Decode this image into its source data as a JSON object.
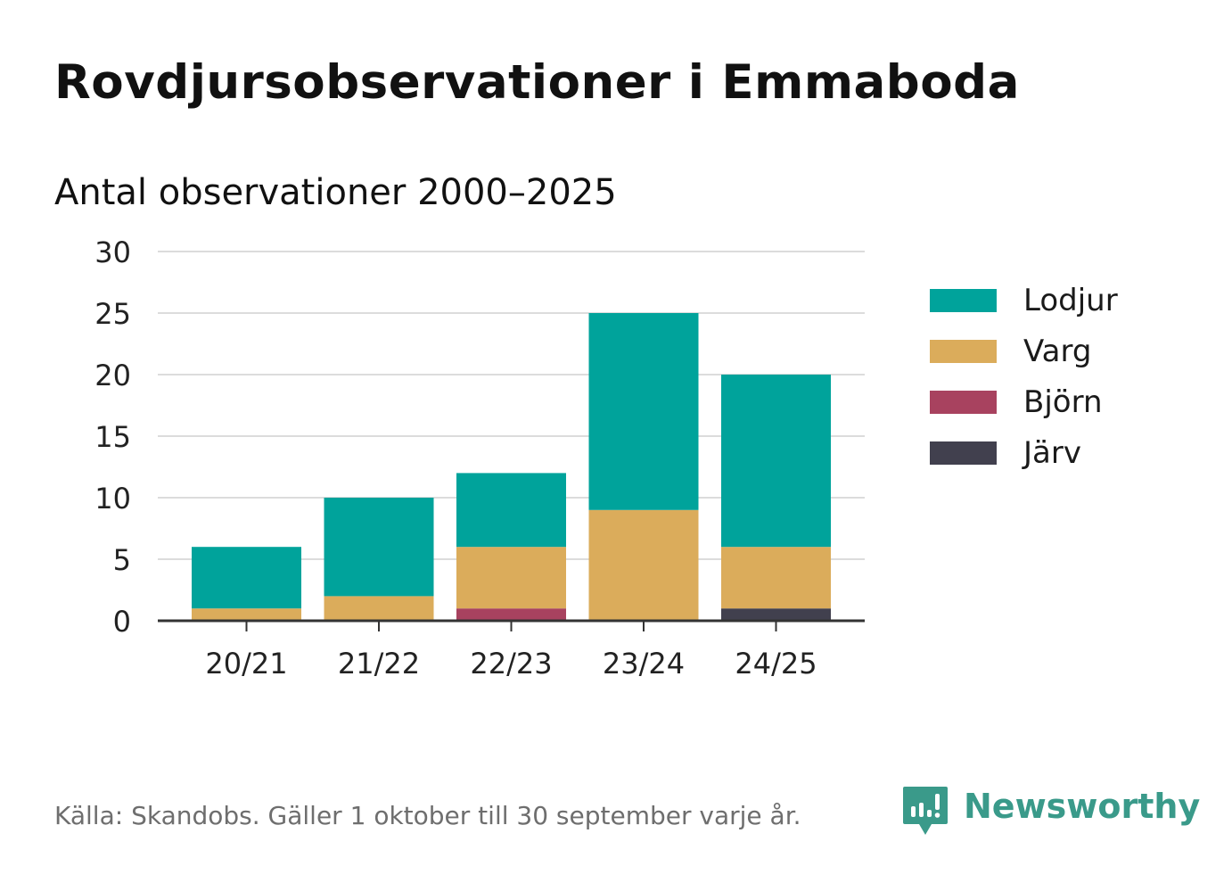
{
  "header": {
    "title": "Rovdjursobservationer i Emmaboda",
    "subtitle": "Antal observationer 2000–2025"
  },
  "chart_data": {
    "type": "bar",
    "stacked": true,
    "title": "Rovdjursobservationer i Emmaboda",
    "subtitle": "Antal observationer 2000–2025",
    "xlabel": "",
    "ylabel": "",
    "categories": [
      "20/21",
      "21/22",
      "22/23",
      "23/24",
      "24/25"
    ],
    "ylim": [
      0,
      30
    ],
    "yticks": [
      0,
      5,
      10,
      15,
      20,
      25,
      30
    ],
    "grid": true,
    "legend_position": "right",
    "series": [
      {
        "name": "Järv",
        "color": "#41404e",
        "values": [
          0,
          0,
          0,
          0,
          1
        ]
      },
      {
        "name": "Björn",
        "color": "#a8425f",
        "values": [
          0,
          0,
          1,
          0,
          0
        ]
      },
      {
        "name": "Varg",
        "color": "#dbac5b",
        "values": [
          1,
          2,
          5,
          9,
          5
        ]
      },
      {
        "name": "Lodjur",
        "color": "#00a39b",
        "values": [
          5,
          8,
          6,
          16,
          14
        ]
      }
    ]
  },
  "legend": {
    "items": [
      {
        "label": "Lodjur",
        "color": "#00a39b"
      },
      {
        "label": "Varg",
        "color": "#dbac5b"
      },
      {
        "label": "Björn",
        "color": "#a8425f"
      },
      {
        "label": "Järv",
        "color": "#41404e"
      }
    ]
  },
  "footer": {
    "source": "Källa: Skandobs. Gäller 1 oktober till 30 september varje år.",
    "brand": "Newsworthy",
    "brand_color": "#3a9a8a"
  }
}
